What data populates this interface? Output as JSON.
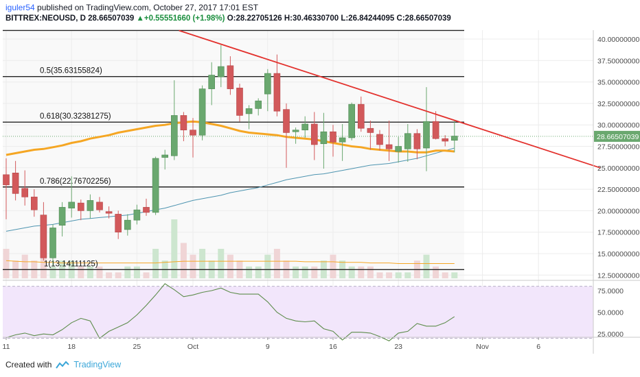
{
  "header": {
    "user": "iguler54",
    "published": " published on TradingView.com, October 27, 2017 17:01 EST",
    "symbol": "BITTREX:NEOUSD, D",
    "last": " 28.66507039 ",
    "change": "▲+0.55551660 (+1.98%)",
    "ohlc": " O:28.22705126 H:30.46330700 L:26.84244095 C:28.66507039"
  },
  "footer": {
    "created_with": "Created with",
    "brand": "TradingView"
  },
  "colors": {
    "up": "#6aa86f",
    "down": "#d2595b",
    "vol_up": "#cde6cf",
    "vol_down": "#f0d5d6",
    "ma_slow": "#4d94b0",
    "ma_fast": "#f5a623",
    "vol_ma": "#f5a623",
    "trendline": "#e3312d",
    "fib": "#222222",
    "rsi_line": "#5d8c4b",
    "rsi_band": "#f2e6fb"
  },
  "chart_data": {
    "type": "candlestick",
    "price_axis": {
      "ticks": [
        "40.00000000",
        "37.50000000",
        "35.00000000",
        "32.50000000",
        "30.00000000",
        "27.50000000",
        "25.00000000",
        "22.50000000",
        "20.00000000",
        "17.50000000",
        "15.00000000",
        "12.50000000"
      ],
      "last_label": "28.66507039",
      "range": [
        12.0,
        41.0
      ]
    },
    "x_axis": {
      "ticks": [
        {
          "day": 0,
          "label": "11"
        },
        {
          "day": 7,
          "label": "18"
        },
        {
          "day": 14,
          "label": "25"
        },
        {
          "day": 20,
          "label": "Oct"
        },
        {
          "day": 28,
          "label": "9"
        },
        {
          "day": 35,
          "label": "16"
        },
        {
          "day": 42,
          "label": "23"
        },
        {
          "day": 51,
          "label": "Nov"
        },
        {
          "day": 57,
          "label": "6"
        }
      ]
    },
    "fib_levels": [
      {
        "label": "",
        "value": 41.0
      },
      {
        "label": "0.5(35.63155824)",
        "value": 35.63155824
      },
      {
        "label": "0.618(30.32381275)",
        "value": 30.32381275
      },
      {
        "label": "0.786(22.76702256)",
        "value": 22.76702256
      },
      {
        "label": "1(13.14111125)",
        "value": 13.14111125
      }
    ],
    "candles": [
      {
        "o": 24.2,
        "h": 26.1,
        "l": 19.0,
        "c": 23.0
      },
      {
        "o": 24.4,
        "h": 25.8,
        "l": 21.2,
        "c": 22.0
      },
      {
        "o": 22.6,
        "h": 24.7,
        "l": 20.6,
        "c": 21.6
      },
      {
        "o": 21.6,
        "h": 22.5,
        "l": 19.3,
        "c": 20.1
      },
      {
        "o": 19.5,
        "h": 21.0,
        "l": 14.2,
        "c": 14.5
      },
      {
        "o": 14.5,
        "h": 18.4,
        "l": 13.6,
        "c": 18.0
      },
      {
        "o": 18.3,
        "h": 21.0,
        "l": 17.0,
        "c": 20.4
      },
      {
        "o": 20.3,
        "h": 24.0,
        "l": 19.2,
        "c": 21.0
      },
      {
        "o": 20.9,
        "h": 21.3,
        "l": 18.9,
        "c": 20.0
      },
      {
        "o": 20.0,
        "h": 21.9,
        "l": 19.1,
        "c": 21.2
      },
      {
        "o": 21.0,
        "h": 21.6,
        "l": 19.8,
        "c": 20.1
      },
      {
        "o": 19.9,
        "h": 20.5,
        "l": 19.1,
        "c": 19.7
      },
      {
        "o": 19.6,
        "h": 20.0,
        "l": 16.7,
        "c": 17.5
      },
      {
        "o": 17.8,
        "h": 19.6,
        "l": 17.1,
        "c": 18.9
      },
      {
        "o": 18.9,
        "h": 20.7,
        "l": 18.4,
        "c": 20.1
      },
      {
        "o": 20.4,
        "h": 21.4,
        "l": 19.4,
        "c": 19.8
      },
      {
        "o": 19.8,
        "h": 26.3,
        "l": 19.5,
        "c": 26.1
      },
      {
        "o": 26.2,
        "h": 27.1,
        "l": 24.8,
        "c": 26.5
      },
      {
        "o": 26.4,
        "h": 35.2,
        "l": 25.9,
        "c": 31.1
      },
      {
        "o": 31.1,
        "h": 31.5,
        "l": 28.1,
        "c": 29.4
      },
      {
        "o": 29.4,
        "h": 30.8,
        "l": 26.2,
        "c": 28.8
      },
      {
        "o": 28.8,
        "h": 34.6,
        "l": 28.2,
        "c": 34.2
      },
      {
        "o": 34.2,
        "h": 37.3,
        "l": 32.3,
        "c": 35.8
      },
      {
        "o": 35.6,
        "h": 39.3,
        "l": 34.4,
        "c": 36.8
      },
      {
        "o": 36.9,
        "h": 38.0,
        "l": 33.5,
        "c": 34.2
      },
      {
        "o": 34.3,
        "h": 34.8,
        "l": 30.4,
        "c": 31.1
      },
      {
        "o": 31.3,
        "h": 32.3,
        "l": 29.5,
        "c": 31.9
      },
      {
        "o": 31.9,
        "h": 33.1,
        "l": 31.1,
        "c": 32.8
      },
      {
        "o": 33.6,
        "h": 36.5,
        "l": 31.6,
        "c": 36.0
      },
      {
        "o": 36.0,
        "h": 38.2,
        "l": 31.0,
        "c": 31.6
      },
      {
        "o": 31.8,
        "h": 32.5,
        "l": 25.0,
        "c": 29.1
      },
      {
        "o": 29.2,
        "h": 29.7,
        "l": 27.8,
        "c": 29.4
      },
      {
        "o": 29.4,
        "h": 31.0,
        "l": 28.5,
        "c": 30.1
      },
      {
        "o": 30.1,
        "h": 31.5,
        "l": 25.9,
        "c": 27.7
      },
      {
        "o": 27.8,
        "h": 31.4,
        "l": 24.9,
        "c": 29.2
      },
      {
        "o": 29.2,
        "h": 30.0,
        "l": 26.3,
        "c": 28.0
      },
      {
        "o": 28.0,
        "h": 30.1,
        "l": 25.8,
        "c": 28.5
      },
      {
        "o": 28.5,
        "h": 32.6,
        "l": 28.2,
        "c": 32.4
      },
      {
        "o": 32.4,
        "h": 33.3,
        "l": 29.2,
        "c": 29.6
      },
      {
        "o": 29.6,
        "h": 30.5,
        "l": 27.1,
        "c": 29.1
      },
      {
        "o": 28.9,
        "h": 29.4,
        "l": 27.0,
        "c": 27.7
      },
      {
        "o": 27.7,
        "h": 30.5,
        "l": 25.8,
        "c": 27.2
      },
      {
        "o": 26.9,
        "h": 28.6,
        "l": 25.6,
        "c": 27.5
      },
      {
        "o": 27.2,
        "h": 30.1,
        "l": 25.7,
        "c": 29.0
      },
      {
        "o": 29.0,
        "h": 29.5,
        "l": 26.0,
        "c": 27.2
      },
      {
        "o": 27.3,
        "h": 34.4,
        "l": 24.6,
        "c": 30.4
      },
      {
        "o": 30.4,
        "h": 31.6,
        "l": 28.3,
        "c": 28.4
      },
      {
        "o": 28.4,
        "h": 28.8,
        "l": 27.5,
        "c": 28.1
      },
      {
        "o": 28.2,
        "h": 30.5,
        "l": 26.8,
        "c": 28.7
      }
    ],
    "volumes": [
      5,
      3,
      4,
      3,
      4,
      2,
      3,
      3,
      2,
      2,
      2,
      1,
      1,
      2,
      2,
      1,
      5,
      3,
      10,
      6,
      4,
      5,
      3,
      5,
      4,
      3,
      2,
      2,
      4,
      5,
      3,
      2,
      2,
      2,
      3,
      4,
      3,
      2,
      2,
      2,
      1,
      1,
      1,
      1,
      3,
      4,
      2,
      1,
      1
    ],
    "ma_slow": [
      17.6,
      17.8,
      18.0,
      18.2,
      18.3,
      18.4,
      18.6,
      18.8,
      19.0,
      19.1,
      19.2,
      19.3,
      19.4,
      19.5,
      19.7,
      19.9,
      20.1,
      20.3,
      20.6,
      20.9,
      21.2,
      21.4,
      21.6,
      21.8,
      22.1,
      22.3,
      22.5,
      22.7,
      23.0,
      23.3,
      23.6,
      23.8,
      24.0,
      24.2,
      24.3,
      24.5,
      24.7,
      24.9,
      25.1,
      25.3,
      25.4,
      25.5,
      25.7,
      25.9,
      26.1,
      26.4,
      26.7,
      27.0,
      27.3
    ],
    "ma_fast": [
      26.5,
      26.7,
      26.9,
      27.1,
      27.2,
      27.4,
      27.6,
      27.9,
      28.1,
      28.4,
      28.6,
      28.8,
      29.1,
      29.3,
      29.5,
      29.7,
      29.9,
      30.0,
      30.2,
      30.3,
      30.4,
      30.3,
      30.1,
      29.9,
      29.6,
      29.3,
      29.1,
      29.0,
      28.9,
      28.8,
      28.6,
      28.5,
      28.4,
      28.3,
      28.1,
      27.9,
      27.7,
      27.5,
      27.4,
      27.2,
      27.1,
      27.0,
      26.9,
      26.9,
      26.8,
      26.8,
      27.0,
      27.0,
      26.9
    ],
    "vol_ma": [
      3.0,
      2.9,
      2.8,
      2.8,
      2.7,
      2.7,
      2.6,
      2.6,
      2.6,
      2.6,
      2.6,
      2.6,
      2.6,
      2.6,
      2.6,
      2.6,
      2.6,
      2.7,
      2.8,
      2.9,
      2.9,
      2.9,
      2.9,
      2.9,
      2.9,
      2.9,
      2.9,
      2.9,
      2.9,
      2.9,
      2.9,
      2.9,
      2.8,
      2.8,
      2.8,
      2.8,
      2.7,
      2.7,
      2.7,
      2.6,
      2.6,
      2.6,
      2.5,
      2.5,
      2.5,
      2.5,
      2.5,
      2.5,
      2.5
    ],
    "trendline": [
      {
        "day": 18.5,
        "value": 41.0
      },
      {
        "day": 63.6,
        "value": 25.0
      }
    ],
    "rsi": {
      "ticks": [
        "75.0000",
        "50.0000",
        "25.0000"
      ],
      "band": [
        20,
        80
      ],
      "values": [
        20.7,
        24,
        26,
        23,
        25,
        24,
        30,
        38,
        43,
        40,
        20,
        28,
        33,
        38,
        47,
        58,
        70,
        83,
        76,
        68,
        70,
        73,
        75,
        78,
        73,
        71,
        71,
        71,
        62,
        50,
        43,
        40,
        39,
        40,
        31,
        28,
        18,
        27,
        27,
        26,
        22,
        17,
        26,
        28,
        37,
        34,
        34,
        38,
        45
      ]
    }
  }
}
